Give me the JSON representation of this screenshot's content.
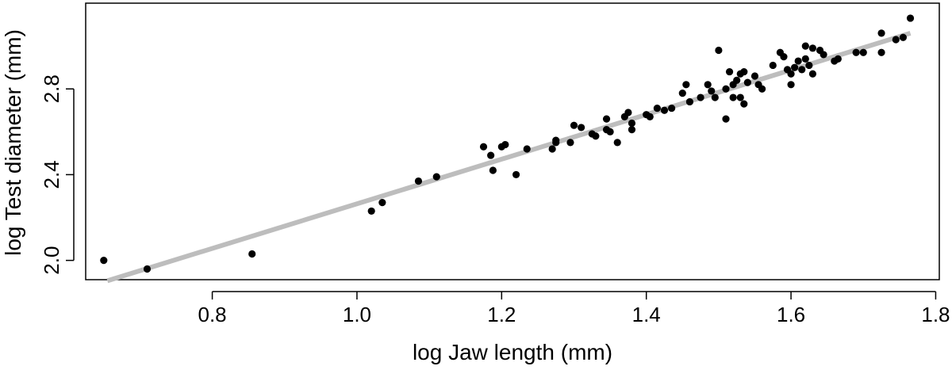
{
  "chart_data": {
    "type": "scatter",
    "title": "",
    "xlabel": "log Jaw length (mm)",
    "ylabel": "log Test diameter (mm)",
    "xlim": [
      0.625,
      1.805
    ],
    "ylim": [
      1.91,
      3.2
    ],
    "xticks": [
      "0.8",
      "1.0",
      "1.2",
      "1.4",
      "1.6",
      "1.8"
    ],
    "yticks": [
      "2.0",
      "2.4",
      "2.8"
    ],
    "grid": false,
    "legend": "none",
    "point_color": "#000000",
    "fit_line_color": "#bdbdbd",
    "fit_line": {
      "x": [
        0.655,
        1.765
      ],
      "y": [
        1.905,
        3.06
      ]
    },
    "points": [
      {
        "x": 0.65,
        "y": 2.0
      },
      {
        "x": 0.71,
        "y": 1.96
      },
      {
        "x": 0.855,
        "y": 2.03
      },
      {
        "x": 1.02,
        "y": 2.23
      },
      {
        "x": 1.035,
        "y": 2.27
      },
      {
        "x": 1.085,
        "y": 2.37
      },
      {
        "x": 1.11,
        "y": 2.39
      },
      {
        "x": 1.175,
        "y": 2.53
      },
      {
        "x": 1.185,
        "y": 2.49
      },
      {
        "x": 1.188,
        "y": 2.42
      },
      {
        "x": 1.2,
        "y": 2.53
      },
      {
        "x": 1.205,
        "y": 2.54
      },
      {
        "x": 1.22,
        "y": 2.4
      },
      {
        "x": 1.235,
        "y": 2.52
      },
      {
        "x": 1.27,
        "y": 2.52
      },
      {
        "x": 1.275,
        "y": 2.55
      },
      {
        "x": 1.275,
        "y": 2.56
      },
      {
        "x": 1.295,
        "y": 2.55
      },
      {
        "x": 1.3,
        "y": 2.63
      },
      {
        "x": 1.31,
        "y": 2.62
      },
      {
        "x": 1.325,
        "y": 2.59
      },
      {
        "x": 1.33,
        "y": 2.58
      },
      {
        "x": 1.345,
        "y": 2.66
      },
      {
        "x": 1.345,
        "y": 2.61
      },
      {
        "x": 1.35,
        "y": 2.6
      },
      {
        "x": 1.36,
        "y": 2.55
      },
      {
        "x": 1.37,
        "y": 2.67
      },
      {
        "x": 1.375,
        "y": 2.69
      },
      {
        "x": 1.38,
        "y": 2.61
      },
      {
        "x": 1.38,
        "y": 2.64
      },
      {
        "x": 1.4,
        "y": 2.68
      },
      {
        "x": 1.405,
        "y": 2.67
      },
      {
        "x": 1.415,
        "y": 2.71
      },
      {
        "x": 1.425,
        "y": 2.7
      },
      {
        "x": 1.435,
        "y": 2.71
      },
      {
        "x": 1.45,
        "y": 2.78
      },
      {
        "x": 1.455,
        "y": 2.82
      },
      {
        "x": 1.46,
        "y": 2.74
      },
      {
        "x": 1.475,
        "y": 2.76
      },
      {
        "x": 1.485,
        "y": 2.82
      },
      {
        "x": 1.49,
        "y": 2.79
      },
      {
        "x": 1.495,
        "y": 2.76
      },
      {
        "x": 1.5,
        "y": 2.98
      },
      {
        "x": 1.51,
        "y": 2.8
      },
      {
        "x": 1.51,
        "y": 2.66
      },
      {
        "x": 1.515,
        "y": 2.88
      },
      {
        "x": 1.52,
        "y": 2.76
      },
      {
        "x": 1.52,
        "y": 2.82
      },
      {
        "x": 1.525,
        "y": 2.84
      },
      {
        "x": 1.53,
        "y": 2.87
      },
      {
        "x": 1.53,
        "y": 2.76
      },
      {
        "x": 1.535,
        "y": 2.88
      },
      {
        "x": 1.535,
        "y": 2.73
      },
      {
        "x": 1.54,
        "y": 2.83
      },
      {
        "x": 1.55,
        "y": 2.86
      },
      {
        "x": 1.555,
        "y": 2.82
      },
      {
        "x": 1.56,
        "y": 2.8
      },
      {
        "x": 1.575,
        "y": 2.91
      },
      {
        "x": 1.585,
        "y": 2.97
      },
      {
        "x": 1.59,
        "y": 2.95
      },
      {
        "x": 1.595,
        "y": 2.89
      },
      {
        "x": 1.6,
        "y": 2.87
      },
      {
        "x": 1.6,
        "y": 2.82
      },
      {
        "x": 1.605,
        "y": 2.9
      },
      {
        "x": 1.61,
        "y": 2.93
      },
      {
        "x": 1.615,
        "y": 2.89
      },
      {
        "x": 1.62,
        "y": 2.94
      },
      {
        "x": 1.62,
        "y": 3.0
      },
      {
        "x": 1.625,
        "y": 2.91
      },
      {
        "x": 1.63,
        "y": 2.87
      },
      {
        "x": 1.63,
        "y": 2.99
      },
      {
        "x": 1.64,
        "y": 2.98
      },
      {
        "x": 1.645,
        "y": 2.96
      },
      {
        "x": 1.66,
        "y": 2.93
      },
      {
        "x": 1.665,
        "y": 2.94
      },
      {
        "x": 1.69,
        "y": 2.97
      },
      {
        "x": 1.7,
        "y": 2.97
      },
      {
        "x": 1.725,
        "y": 3.06
      },
      {
        "x": 1.725,
        "y": 2.97
      },
      {
        "x": 1.745,
        "y": 3.03
      },
      {
        "x": 1.755,
        "y": 3.04
      },
      {
        "x": 1.765,
        "y": 3.13
      }
    ]
  }
}
